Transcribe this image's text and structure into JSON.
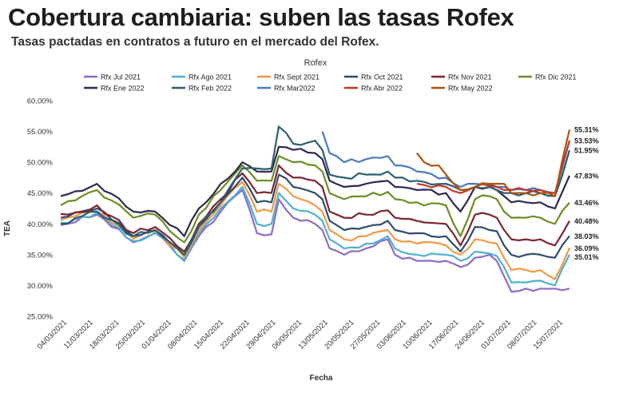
{
  "page": {
    "title": "Cobertura cambiaria: suben las tasas Rofex",
    "subtitle": "Tasas pactadas en contratos a futuro en el mercado del Rofex."
  },
  "chart_data": {
    "type": "line",
    "title": "Rofex",
    "xlabel": "Fecha",
    "ylabel": "TEA",
    "ylim": [
      25,
      60
    ],
    "y_ticks": [
      "25.00%",
      "30.00%",
      "35.00%",
      "40.00%",
      "45.00%",
      "50.00%",
      "55.00%",
      "60.00%"
    ],
    "x_ticks": [
      "04/03/2021",
      "11/03/2021",
      "18/03/2021",
      "25/03/2021",
      "01/04/2021",
      "08/04/2021",
      "15/04/2021",
      "22/04/2021",
      "29/04/2021",
      "06/05/2021",
      "13/05/2021",
      "20/05/2021",
      "27/05/2021",
      "03/06/2021",
      "10/06/2021",
      "17/06/2021",
      "24/06/2021",
      "01/07/2021",
      "08/07/2021",
      "15/07/2021"
    ],
    "legend_position": "top",
    "grid": false,
    "end_labels": [
      "55.31%",
      "53.53%",
      "51.95%",
      "47.83%",
      "43.46%",
      "40.48%",
      "38.03%",
      "36.09%",
      "35.01%"
    ],
    "series": [
      {
        "name": "Rfx Jul 2021",
        "color": "#8e6cc2",
        "start": 0,
        "knots": [
          [
            0,
            39.8
          ],
          [
            5,
            41.5
          ],
          [
            10,
            37
          ],
          [
            13,
            38.5
          ],
          [
            17,
            34
          ],
          [
            19,
            38
          ],
          [
            22,
            42
          ],
          [
            25,
            45.5
          ],
          [
            27,
            38.5
          ],
          [
            29,
            38.3
          ],
          [
            30,
            44
          ],
          [
            32,
            41
          ],
          [
            35,
            40
          ],
          [
            36,
            39
          ],
          [
            37,
            36
          ],
          [
            39,
            35
          ],
          [
            42,
            36
          ],
          [
            45,
            37.5
          ],
          [
            46,
            35
          ],
          [
            49,
            34
          ],
          [
            53,
            34
          ],
          [
            55,
            33
          ],
          [
            57,
            34.5
          ],
          [
            59,
            35
          ],
          [
            60,
            34
          ],
          [
            61,
            31.5
          ],
          [
            62,
            29
          ],
          [
            64,
            29.5
          ],
          [
            66,
            29.5
          ],
          [
            68,
            29.5
          ],
          [
            70,
            29.5
          ]
        ]
      },
      {
        "name": "Rfx Ago 2021",
        "color": "#4fb0cf",
        "start": 0,
        "knots": [
          [
            0,
            40.2
          ],
          [
            5,
            41.8
          ],
          [
            10,
            37.2
          ],
          [
            13,
            38.6
          ],
          [
            17,
            34.2
          ],
          [
            19,
            38.5
          ],
          [
            22,
            42.5
          ],
          [
            25,
            46
          ],
          [
            27,
            40
          ],
          [
            29,
            40
          ],
          [
            30,
            45
          ],
          [
            32,
            42.5
          ],
          [
            35,
            41.5
          ],
          [
            36,
            40.5
          ],
          [
            37,
            37.5
          ],
          [
            39,
            36
          ],
          [
            42,
            36.8
          ],
          [
            45,
            38
          ],
          [
            46,
            36
          ],
          [
            49,
            35
          ],
          [
            53,
            35
          ],
          [
            55,
            34
          ],
          [
            57,
            35.5
          ],
          [
            59,
            35.2
          ],
          [
            60,
            34.8
          ],
          [
            61,
            33
          ],
          [
            62,
            30.5
          ],
          [
            64,
            30.5
          ],
          [
            66,
            30.8
          ],
          [
            68,
            30
          ],
          [
            70,
            35.01
          ]
        ]
      },
      {
        "name": "Rfx Sept 2021",
        "color": "#f09a45",
        "start": 0,
        "knots": [
          [
            0,
            40.6
          ],
          [
            5,
            42
          ],
          [
            10,
            37.6
          ],
          [
            13,
            38.8
          ],
          [
            17,
            34.6
          ],
          [
            19,
            39
          ],
          [
            22,
            43
          ],
          [
            25,
            46.8
          ],
          [
            27,
            42
          ],
          [
            29,
            42
          ],
          [
            30,
            46.5
          ],
          [
            32,
            44.5
          ],
          [
            35,
            43
          ],
          [
            36,
            42
          ],
          [
            37,
            39
          ],
          [
            39,
            37.5
          ],
          [
            42,
            38
          ],
          [
            45,
            39
          ],
          [
            46,
            37.5
          ],
          [
            49,
            36.8
          ],
          [
            53,
            36.5
          ],
          [
            55,
            35
          ],
          [
            57,
            37.5
          ],
          [
            59,
            37
          ],
          [
            60,
            36.8
          ],
          [
            61,
            34.5
          ],
          [
            62,
            32.5
          ],
          [
            64,
            32.5
          ],
          [
            66,
            32.5
          ],
          [
            68,
            31
          ],
          [
            70,
            36.09
          ]
        ]
      },
      {
        "name": "Rfx Oct 2021",
        "color": "#2f4b6e",
        "start": 0,
        "knots": [
          [
            0,
            41
          ],
          [
            5,
            42.5
          ],
          [
            10,
            38
          ],
          [
            13,
            39
          ],
          [
            17,
            35
          ],
          [
            19,
            39.5
          ],
          [
            22,
            43.5
          ],
          [
            25,
            47.5
          ],
          [
            27,
            43.5
          ],
          [
            29,
            43.5
          ],
          [
            30,
            48
          ],
          [
            32,
            46
          ],
          [
            35,
            45
          ],
          [
            36,
            44
          ],
          [
            37,
            40.5
          ],
          [
            39,
            39
          ],
          [
            42,
            39.5
          ],
          [
            45,
            40.5
          ],
          [
            46,
            39
          ],
          [
            49,
            38.5
          ],
          [
            53,
            38
          ],
          [
            55,
            35.5
          ],
          [
            57,
            39.5
          ],
          [
            59,
            39
          ],
          [
            60,
            38.8
          ],
          [
            61,
            36.5
          ],
          [
            62,
            35
          ],
          [
            64,
            35
          ],
          [
            66,
            35
          ],
          [
            68,
            34.5
          ],
          [
            70,
            38.03
          ]
        ]
      },
      {
        "name": "Rfx Nov 2021",
        "color": "#7a2531",
        "start": 0,
        "knots": [
          [
            0,
            41.6
          ],
          [
            5,
            43
          ],
          [
            10,
            38.5
          ],
          [
            13,
            39.5
          ],
          [
            17,
            35.5
          ],
          [
            19,
            40
          ],
          [
            22,
            44
          ],
          [
            25,
            48.2
          ],
          [
            27,
            45
          ],
          [
            29,
            45
          ],
          [
            30,
            49.5
          ],
          [
            32,
            47.5
          ],
          [
            35,
            47
          ],
          [
            36,
            46
          ],
          [
            37,
            42
          ],
          [
            39,
            41
          ],
          [
            42,
            41.5
          ],
          [
            45,
            42.2
          ],
          [
            46,
            41
          ],
          [
            49,
            40.5
          ],
          [
            53,
            40
          ],
          [
            55,
            36.5
          ],
          [
            57,
            41.5
          ],
          [
            59,
            41.5
          ],
          [
            60,
            41
          ],
          [
            61,
            39
          ],
          [
            62,
            37.5
          ],
          [
            64,
            37.5
          ],
          [
            66,
            37.5
          ],
          [
            68,
            36.5
          ],
          [
            70,
            40.48
          ]
        ]
      },
      {
        "name": "Rfx Dic 2021",
        "color": "#6b8e23",
        "start": 0,
        "knots": [
          [
            0,
            43
          ],
          [
            5,
            45.5
          ],
          [
            10,
            41
          ],
          [
            13,
            41.5
          ],
          [
            17,
            37
          ],
          [
            19,
            41.5
          ],
          [
            22,
            45.5
          ],
          [
            25,
            49.5
          ],
          [
            27,
            47
          ],
          [
            29,
            47
          ],
          [
            30,
            51
          ],
          [
            32,
            50
          ],
          [
            35,
            49.5
          ],
          [
            36,
            48.5
          ],
          [
            37,
            45
          ],
          [
            39,
            44
          ],
          [
            42,
            44.5
          ],
          [
            45,
            45.2
          ],
          [
            46,
            44
          ],
          [
            49,
            43.5
          ],
          [
            53,
            43
          ],
          [
            55,
            38
          ],
          [
            57,
            44
          ],
          [
            59,
            44.5
          ],
          [
            60,
            44
          ],
          [
            61,
            42
          ],
          [
            62,
            41
          ],
          [
            64,
            41
          ],
          [
            66,
            41
          ],
          [
            68,
            40
          ],
          [
            70,
            43.46
          ]
        ]
      },
      {
        "name": "Rfx Ene 2022",
        "color": "#2e2850",
        "start": 0,
        "knots": [
          [
            0,
            44.5
          ],
          [
            5,
            46.5
          ],
          [
            10,
            42
          ],
          [
            13,
            42
          ],
          [
            17,
            38
          ],
          [
            19,
            42.5
          ],
          [
            22,
            46.5
          ],
          [
            25,
            50
          ],
          [
            27,
            48.5
          ],
          [
            29,
            48.5
          ],
          [
            30,
            52.5
          ],
          [
            32,
            52
          ],
          [
            35,
            51.5
          ],
          [
            36,
            50.5
          ],
          [
            37,
            47
          ],
          [
            39,
            46
          ],
          [
            42,
            46.5
          ],
          [
            45,
            47
          ],
          [
            46,
            46
          ],
          [
            49,
            45.5
          ],
          [
            53,
            45
          ],
          [
            55,
            42
          ],
          [
            57,
            46
          ],
          [
            59,
            46
          ],
          [
            60,
            45.5
          ],
          [
            61,
            44.5
          ],
          [
            62,
            43.5
          ],
          [
            64,
            43.5
          ],
          [
            66,
            43.5
          ],
          [
            68,
            42.5
          ],
          [
            70,
            47.83
          ]
        ]
      },
      {
        "name": "Rfx Feb 2022",
        "color": "#2b5f6e",
        "start": 0,
        "knots": [
          [
            0,
            40
          ],
          [
            5,
            42
          ],
          [
            10,
            38
          ],
          [
            13,
            39
          ],
          [
            17,
            35
          ],
          [
            19,
            39.5
          ],
          [
            22,
            43.5
          ],
          [
            25,
            49
          ],
          [
            27,
            49
          ],
          [
            29,
            49
          ],
          [
            30,
            55.8
          ],
          [
            32,
            53
          ],
          [
            35,
            53.5
          ],
          [
            36,
            52
          ],
          [
            37,
            48
          ],
          [
            39,
            47.5
          ],
          [
            42,
            48
          ],
          [
            45,
            48.5
          ],
          [
            46,
            47.5
          ],
          [
            49,
            47
          ],
          [
            53,
            46.5
          ],
          [
            55,
            45.5
          ],
          [
            57,
            46
          ],
          [
            59,
            46
          ],
          [
            60,
            45.5
          ],
          [
            61,
            45
          ],
          [
            62,
            45
          ],
          [
            64,
            45
          ],
          [
            66,
            45
          ],
          [
            68,
            44.5
          ],
          [
            70,
            51.95
          ]
        ]
      },
      {
        "name": "Rfx Mar2022",
        "color": "#4a78c2",
        "start": 36,
        "knots": [
          [
            36,
            55
          ],
          [
            37,
            51.5
          ],
          [
            39,
            50
          ],
          [
            42,
            50.5
          ],
          [
            45,
            51
          ],
          [
            46,
            49.5
          ],
          [
            49,
            48.5
          ],
          [
            53,
            47.5
          ],
          [
            55,
            46
          ],
          [
            57,
            46.5
          ],
          [
            59,
            46.5
          ],
          [
            60,
            46
          ],
          [
            61,
            46
          ],
          [
            62,
            45.5
          ],
          [
            64,
            45.5
          ],
          [
            66,
            45.5
          ],
          [
            68,
            45
          ],
          [
            70,
            53.53
          ]
        ]
      },
      {
        "name": "Rfx Abr 2022",
        "color": "#c0392b",
        "start": 49,
        "knots": [
          [
            49,
            46.5
          ],
          [
            53,
            46
          ],
          [
            55,
            45
          ],
          [
            57,
            46
          ],
          [
            59,
            46.2
          ],
          [
            60,
            46
          ],
          [
            61,
            45.5
          ],
          [
            62,
            45.5
          ],
          [
            64,
            45.5
          ],
          [
            66,
            45.5
          ],
          [
            68,
            45
          ],
          [
            70,
            53.53
          ]
        ]
      },
      {
        "name": "Rfx May 2022",
        "color": "#b0520f",
        "start": 49,
        "knots": [
          [
            49,
            51.5
          ],
          [
            50,
            50
          ],
          [
            52,
            49.5
          ],
          [
            53,
            48
          ],
          [
            55,
            45.5
          ],
          [
            57,
            46
          ],
          [
            59,
            46.5
          ],
          [
            60,
            46.5
          ],
          [
            61,
            46.5
          ],
          [
            62,
            45
          ],
          [
            64,
            45
          ],
          [
            66,
            45
          ],
          [
            68,
            44.5
          ],
          [
            70,
            55.31
          ]
        ]
      }
    ]
  }
}
